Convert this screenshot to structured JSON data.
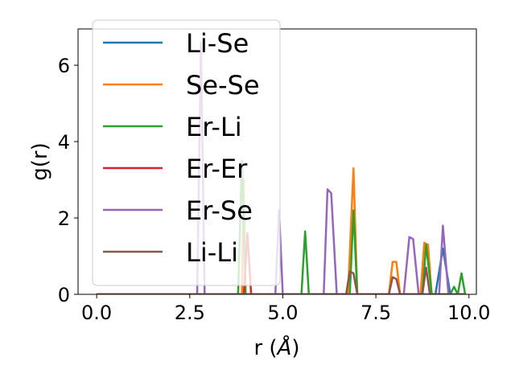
{
  "chart_data": {
    "type": "line",
    "xlabel": "r (",
    "xlabel_unit": "Å",
    "xlabel_close": ")",
    "ylabel": "g(r)",
    "xlim": [
      -0.5,
      10.2
    ],
    "ylim": [
      0,
      6.95
    ],
    "xticks": [
      0.0,
      2.5,
      5.0,
      7.5,
      10.0
    ],
    "xtick_labels": [
      "0.0",
      "2.5",
      "5.0",
      "7.5",
      "10.0"
    ],
    "yticks": [
      0,
      2,
      4,
      6
    ],
    "ytick_labels": [
      "0",
      "2",
      "4",
      "6"
    ],
    "grid": false,
    "legend_position": "upper-left",
    "series": [
      {
        "name": "Li-Se",
        "color": "#1f77b4",
        "points": [
          [
            0,
            0
          ],
          [
            9.1,
            0
          ],
          [
            9.3,
            1.2
          ],
          [
            9.5,
            0
          ],
          [
            9.9,
            0
          ]
        ]
      },
      {
        "name": "Se-Se",
        "color": "#ff7f0e",
        "points": [
          [
            0,
            0
          ],
          [
            3.9,
            0
          ],
          [
            3.95,
            3.0
          ],
          [
            4.0,
            0
          ],
          [
            6.75,
            0
          ],
          [
            6.9,
            3.3
          ],
          [
            7.0,
            0
          ],
          [
            7.85,
            0
          ],
          [
            7.95,
            0.85
          ],
          [
            8.05,
            0.85
          ],
          [
            8.15,
            0
          ],
          [
            8.7,
            0
          ],
          [
            8.8,
            1.35
          ],
          [
            8.9,
            1.3
          ],
          [
            9.0,
            0
          ],
          [
            9.9,
            0
          ]
        ]
      },
      {
        "name": "Er-Li",
        "color": "#2ca02c",
        "points": [
          [
            0,
            0
          ],
          [
            3.8,
            0
          ],
          [
            3.9,
            3.5
          ],
          [
            4.0,
            0
          ],
          [
            5.5,
            0
          ],
          [
            5.6,
            1.65
          ],
          [
            5.7,
            0
          ],
          [
            6.8,
            0
          ],
          [
            6.9,
            2.2
          ],
          [
            7.0,
            0
          ],
          [
            8.75,
            0
          ],
          [
            8.85,
            1.3
          ],
          [
            9.0,
            0
          ],
          [
            9.5,
            0
          ],
          [
            9.6,
            0.2
          ],
          [
            9.7,
            0
          ],
          [
            9.8,
            0.55
          ],
          [
            9.9,
            0
          ]
        ]
      },
      {
        "name": "Er-Er",
        "color": "#d62728",
        "points": [
          [
            0,
            0
          ],
          [
            3.95,
            0
          ],
          [
            4.05,
            1.6
          ],
          [
            4.15,
            0
          ],
          [
            9.9,
            0
          ]
        ]
      },
      {
        "name": "Er-Se",
        "color": "#9467bd",
        "points": [
          [
            0,
            0
          ],
          [
            2.7,
            0
          ],
          [
            2.8,
            6.6
          ],
          [
            2.9,
            0
          ],
          [
            4.8,
            0
          ],
          [
            4.9,
            2.2
          ],
          [
            5.0,
            0
          ],
          [
            6.1,
            0
          ],
          [
            6.2,
            2.75
          ],
          [
            6.3,
            2.65
          ],
          [
            6.45,
            0
          ],
          [
            8.25,
            0
          ],
          [
            8.4,
            1.5
          ],
          [
            8.5,
            1.45
          ],
          [
            8.65,
            0
          ],
          [
            9.2,
            0
          ],
          [
            9.3,
            1.8
          ],
          [
            9.45,
            0
          ],
          [
            9.9,
            0
          ]
        ]
      },
      {
        "name": "Li-Li",
        "color": "#8c564b",
        "points": [
          [
            0,
            0
          ],
          [
            6.7,
            0
          ],
          [
            6.8,
            0.6
          ],
          [
            6.9,
            0.55
          ],
          [
            7.0,
            0
          ],
          [
            7.85,
            0
          ],
          [
            7.95,
            0.45
          ],
          [
            8.05,
            0.4
          ],
          [
            8.15,
            0
          ],
          [
            8.75,
            0
          ],
          [
            8.85,
            0.7
          ],
          [
            8.95,
            0
          ],
          [
            9.9,
            0
          ]
        ]
      }
    ]
  }
}
